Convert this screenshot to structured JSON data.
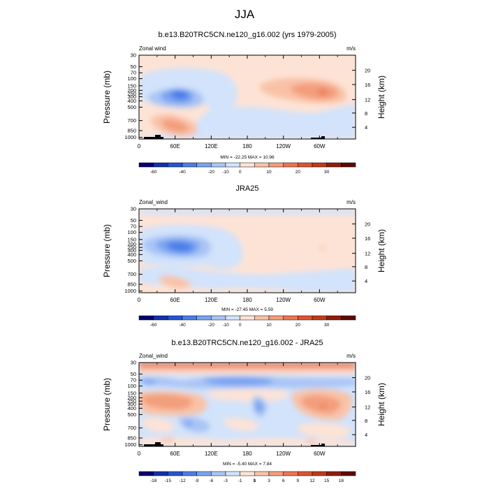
{
  "figure": {
    "title": "JJA"
  },
  "chart_data": [
    {
      "type": "heatmap",
      "title": "b.e13.B20TRC5CN.ne120_g16.002 (yrs 1979-2005)",
      "left_label": "Zonal wind",
      "right_label": "m/s",
      "ylabel": "Pressure (mb)",
      "y2label": "Height (km)",
      "xticks": [
        "0",
        "60E",
        "120E",
        "180",
        "120W",
        "60W"
      ],
      "yticks": [
        "30",
        "50",
        "70",
        "100",
        "150",
        "200",
        "250",
        "300",
        "400",
        "500",
        "700",
        "850",
        "1000"
      ],
      "y2ticks": [
        "20",
        "16",
        "12",
        "8",
        "4"
      ],
      "stats": "MIN = -22.25  MAX =  10.96",
      "min": -22.25,
      "max": 10.96,
      "colorbar": [
        "-60",
        "-40",
        "-20",
        "-10",
        "0",
        "10",
        "20",
        "30"
      ],
      "ylim": [
        1000,
        30
      ],
      "xlim": [
        0,
        360
      ]
    },
    {
      "type": "heatmap",
      "title": "JRA25",
      "left_label": "Zonal_wind",
      "right_label": "m/s",
      "ylabel": "Pressure (mb)",
      "y2label": "Height (km)",
      "xticks": [
        "0",
        "60E",
        "120E",
        "180",
        "120W",
        "60W"
      ],
      "yticks": [
        "30",
        "50",
        "70",
        "100",
        "150",
        "200",
        "250",
        "300",
        "400",
        "500",
        "700",
        "850",
        "1000"
      ],
      "y2ticks": [
        "20",
        "16",
        "12",
        "8",
        "4"
      ],
      "stats": "MIN = -27.45  MAX =   5.59",
      "min": -27.45,
      "max": 5.59,
      "colorbar": [
        "-60",
        "-40",
        "-20",
        "-10",
        "0",
        "10",
        "20",
        "30"
      ],
      "ylim": [
        1000,
        30
      ],
      "xlim": [
        0,
        360
      ]
    },
    {
      "type": "heatmap",
      "title": "b.e13.B20TRC5CN.ne120_g16.002 - JRA25",
      "left_label": "Zonal_wind",
      "right_label": "m/s",
      "ylabel": "Pressure (mb)",
      "y2label": "Height (km)",
      "xticks": [
        "0",
        "60E",
        "120E",
        "180",
        "120W",
        "60W"
      ],
      "yticks": [
        "30",
        "50",
        "70",
        "100",
        "150",
        "200",
        "250",
        "300",
        "400",
        "500",
        "700",
        "850",
        "1000"
      ],
      "y2ticks": [
        "20",
        "16",
        "12",
        "8",
        "4"
      ],
      "stats": "MIN =  -5.40  MAX =   7.84",
      "min": -5.4,
      "max": 7.84,
      "colorbar": [
        "-18",
        "-15",
        "-12",
        "-9",
        "-6",
        "-3",
        "-1",
        "0",
        "1",
        "3",
        "6",
        "9",
        "12",
        "15",
        "18"
      ],
      "ylim": [
        1000,
        30
      ],
      "xlim": [
        0,
        360
      ]
    }
  ],
  "colors": {
    "ramp": [
      "#08006e",
      "#1230a8",
      "#2456d4",
      "#4a7ee8",
      "#7aa3f0",
      "#a9c5f5",
      "#d2e3fb",
      "#fde3d6",
      "#f9c2a7",
      "#f39e7b",
      "#eb7552",
      "#e0542f",
      "#c23a18",
      "#8f1e0a",
      "#5c0b02"
    ]
  }
}
